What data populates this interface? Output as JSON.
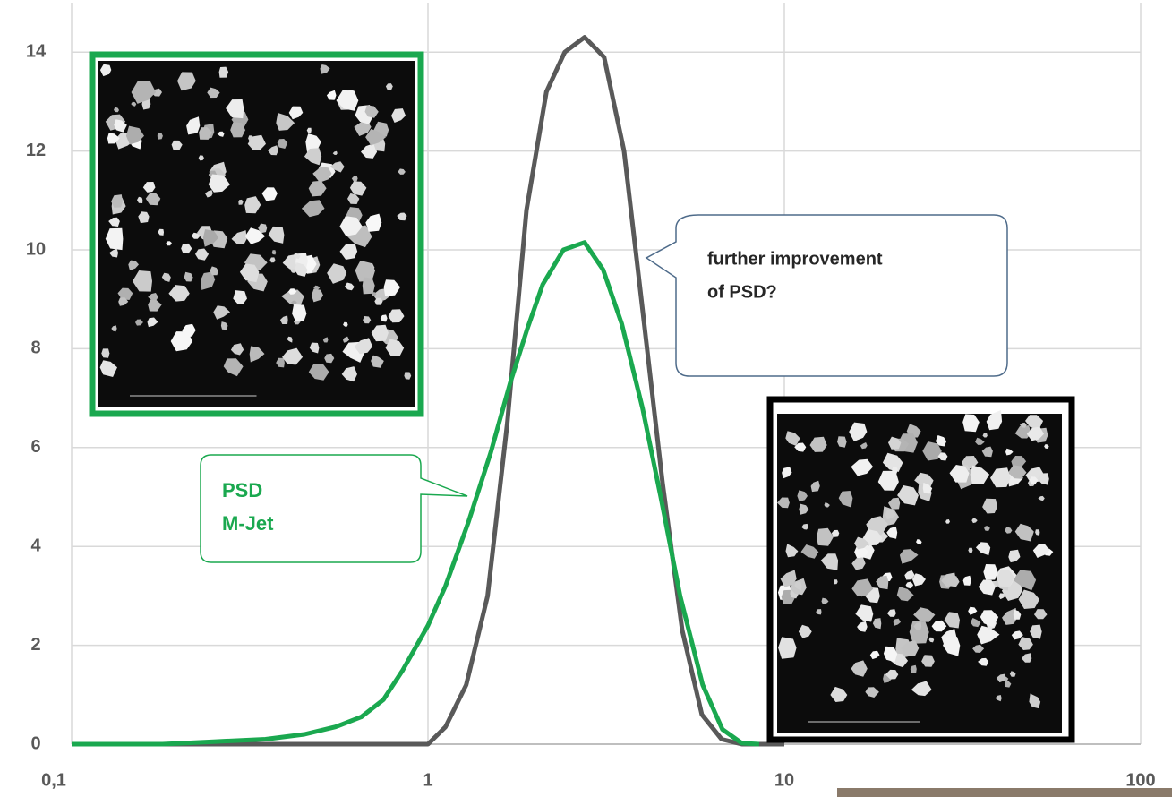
{
  "chart_data": {
    "type": "line",
    "x_scale": "log",
    "grid": true,
    "xlim": [
      0.1,
      100
    ],
    "xticks": [
      {
        "value": 0.1,
        "label": "0,1"
      },
      1,
      10,
      100
    ],
    "ylim": [
      0,
      15
    ],
    "yticks": [
      0,
      2,
      4,
      6,
      8,
      10,
      12,
      14
    ],
    "series": [
      {
        "color": "#595959",
        "x": [
          0.1,
          0.5,
          1.0,
          1.12,
          1.28,
          1.47,
          1.67,
          1.89,
          2.15,
          2.42,
          2.75,
          3.12,
          3.55,
          4.0,
          4.55,
          5.17,
          5.87,
          6.67,
          7.6,
          10
        ],
        "values": [
          0,
          0,
          0,
          0.35,
          1.2,
          3.0,
          6.5,
          10.8,
          13.2,
          14.0,
          14.3,
          13.9,
          12.0,
          8.8,
          5.3,
          2.3,
          0.6,
          0.1,
          0,
          0
        ]
      },
      {
        "color": "#1aa84f",
        "x": [
          0.1,
          0.18,
          0.25,
          0.35,
          0.45,
          0.55,
          0.65,
          0.75,
          0.85,
          1.0,
          1.12,
          1.3,
          1.5,
          1.7,
          1.9,
          2.1,
          2.4,
          2.75,
          3.1,
          3.5,
          4.0,
          4.5,
          5.1,
          5.9,
          6.7,
          7.6,
          8.5
        ],
        "values": [
          0,
          0,
          0.05,
          0.1,
          0.2,
          0.35,
          0.55,
          0.9,
          1.5,
          2.4,
          3.2,
          4.5,
          5.9,
          7.3,
          8.4,
          9.3,
          10.0,
          10.15,
          9.6,
          8.5,
          6.8,
          5.0,
          3.0,
          1.2,
          0.3,
          0.02,
          0
        ]
      }
    ],
    "annotations": [
      {
        "lines": [
          "PSD",
          "M-Jet"
        ],
        "color": "#1aa84f"
      },
      {
        "lines": [
          "further improvement",
          "of PSD?"
        ],
        "color": "#262626"
      }
    ]
  }
}
